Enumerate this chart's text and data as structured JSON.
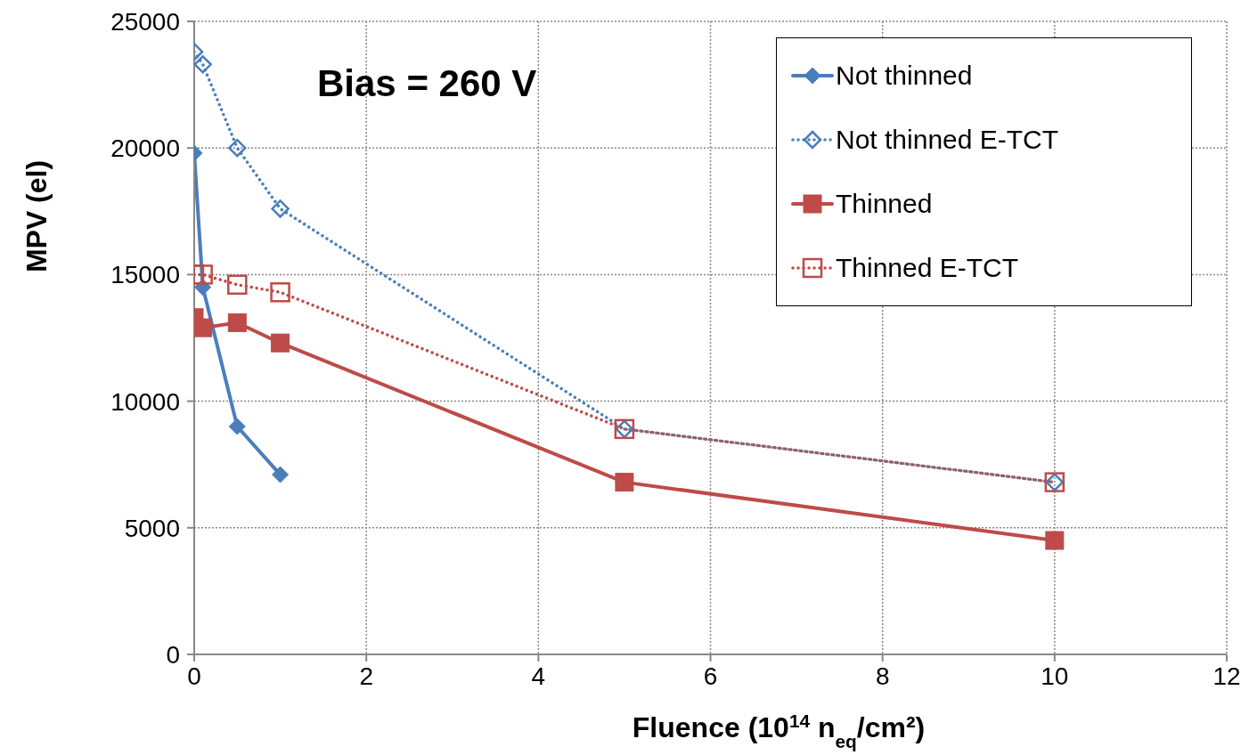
{
  "chart_data": {
    "type": "line",
    "xlabel": "Fluence (10$^{14}$ n$_{eq}$/cm²)",
    "ylabel": "MPV (el)",
    "annotations": [
      "Bias = 260 V"
    ],
    "xlim": [
      0,
      12
    ],
    "xticks": [
      0,
      2,
      4,
      6,
      8,
      10,
      12
    ],
    "ylim": [
      0,
      25000
    ],
    "yticks": [
      0,
      5000,
      10000,
      15000,
      20000,
      25000
    ],
    "grid": true,
    "legend": "top right",
    "series": [
      {
        "name": "Not thinned",
        "color": "#4a7ebb",
        "marker": "diamond",
        "line_style": "solid",
        "x": [
          0,
          0.1,
          0.5,
          1
        ],
        "values": [
          19800,
          14500,
          9000,
          7100
        ]
      },
      {
        "name": "Not thinned E-TCT",
        "color": "#4a7ebb",
        "marker": "diamond",
        "line_style": "dotted",
        "x": [
          0,
          0.1,
          0.5,
          1,
          5,
          10
        ],
        "values": [
          23800,
          23300,
          20000,
          17600,
          8900,
          6800
        ]
      },
      {
        "name": "Thinned",
        "color": "#be4b48",
        "marker": "square",
        "line_style": "solid",
        "x": [
          0,
          0.1,
          0.5,
          1,
          5,
          10
        ],
        "values": [
          13300,
          12900,
          13100,
          12300,
          6800,
          4500
        ]
      },
      {
        "name": "Thinned E-TCT",
        "color": "#be4b48",
        "marker": "square",
        "line_style": "dotted",
        "x": [
          0,
          0.1,
          0.5,
          1,
          5,
          10
        ],
        "values": [
          15000,
          15000,
          14600,
          14300,
          8900,
          6800
        ]
      }
    ]
  }
}
